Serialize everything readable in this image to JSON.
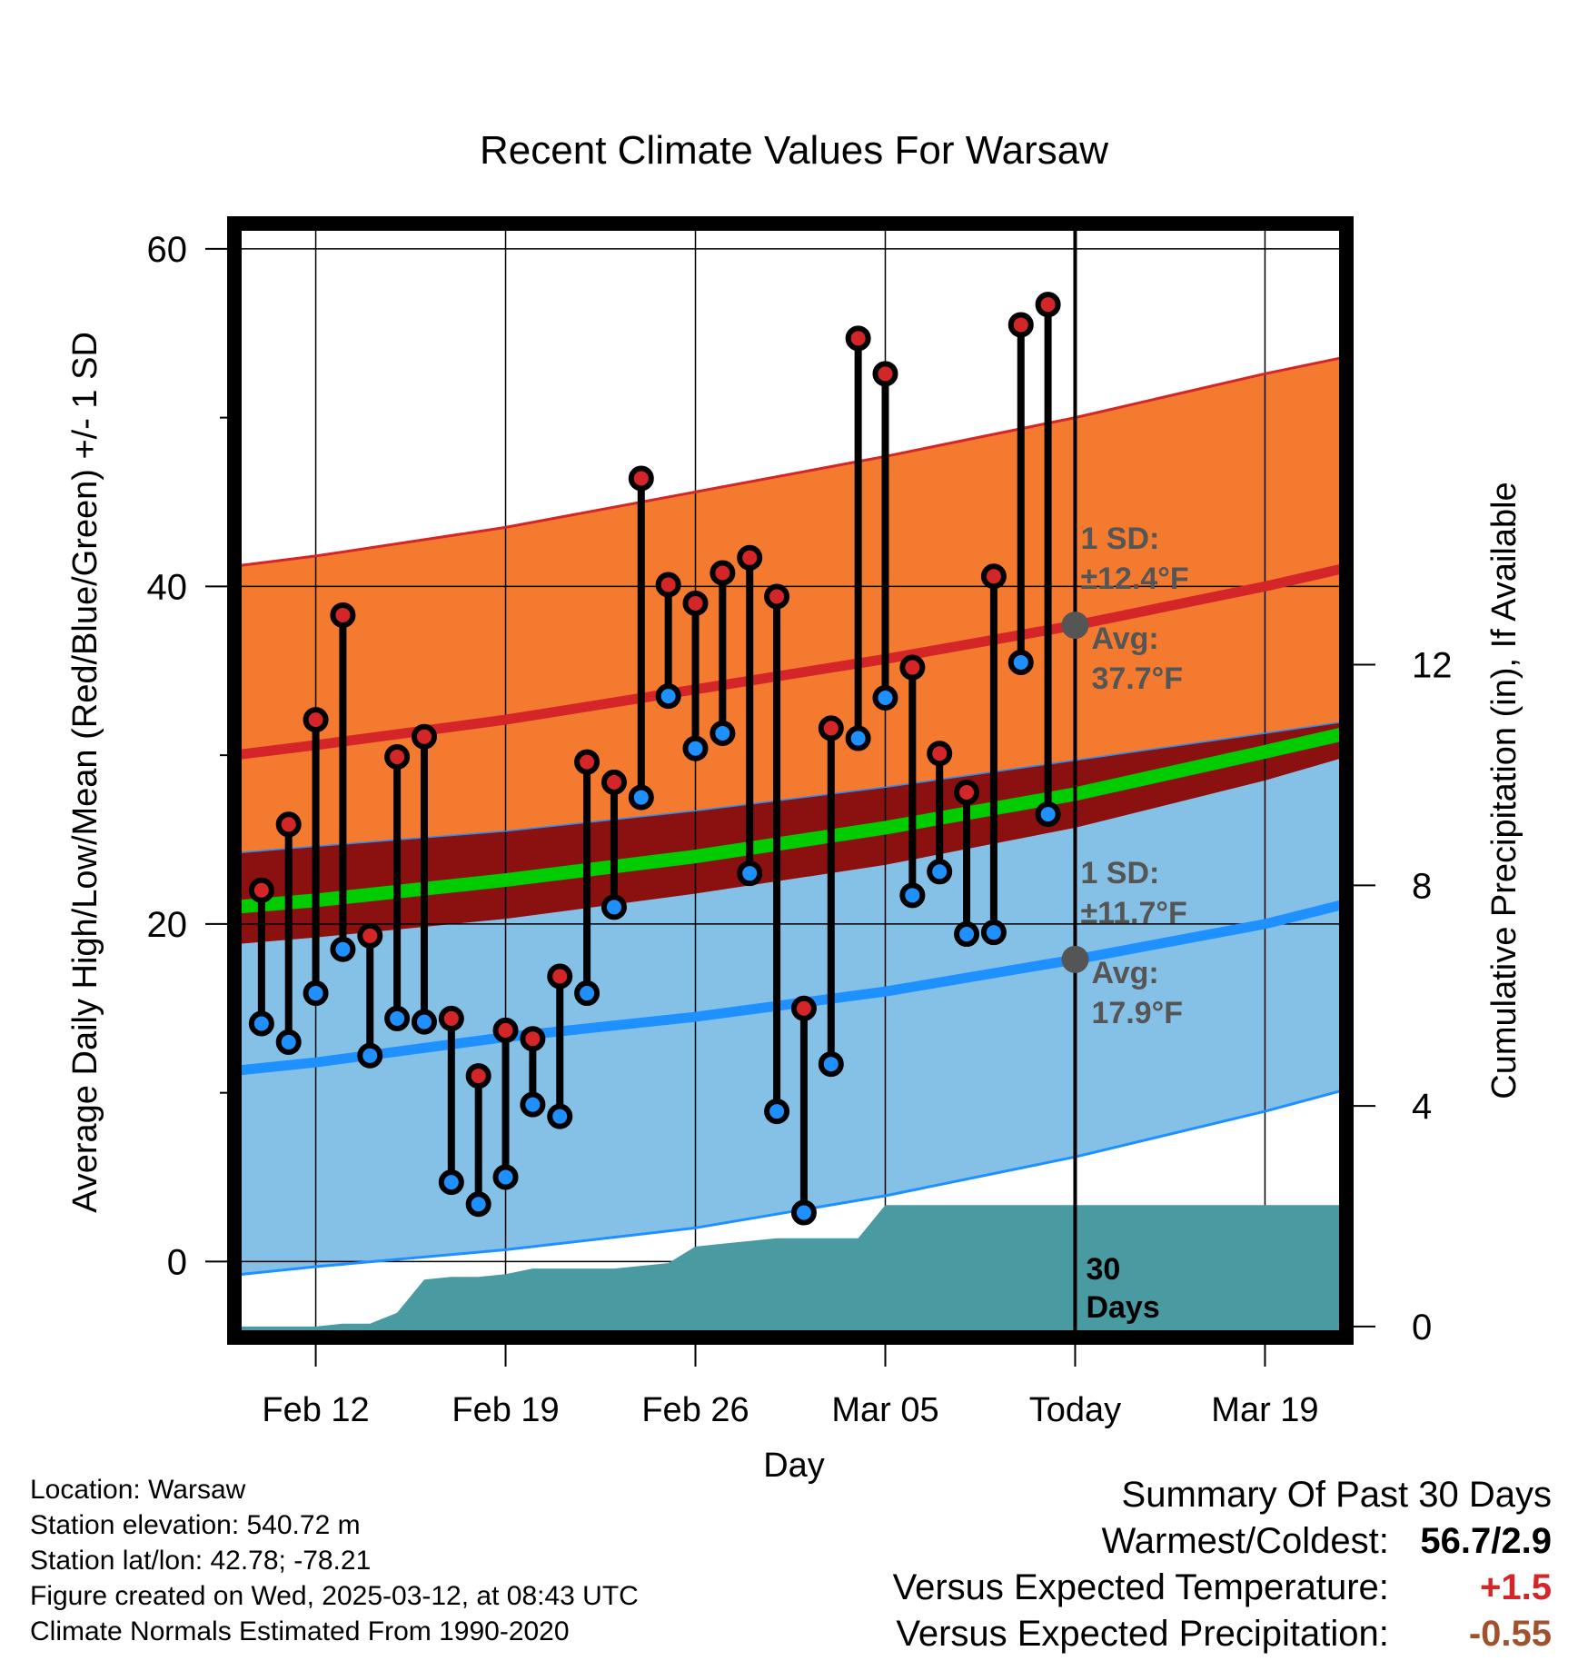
{
  "title": "Recent Climate Values For Warsaw",
  "xlabel": "Day",
  "ylabel_left": "Average Daily High/Low/Mean (Red/Blue/Green) +/- 1 SD",
  "ylabel_right": "Cumulative Precipitation (in), If Available",
  "colors": {
    "high_band": "#f47a30",
    "low_band": "#85c1e6",
    "high_line": "#d42628",
    "low_line": "#1e90ff",
    "mean_line": "#00cc00",
    "mean_band": "#8b1010",
    "precip": "#4a9aa2",
    "high_point": "#d42628",
    "low_point": "#1e90ff",
    "annotation": "#555555",
    "temp_delta": "#d42628",
    "precip_delta": "#a0522d"
  },
  "annotations": {
    "high_sd_label": "1 SD:",
    "high_sd_value": "±12.4°F",
    "high_avg_label": "Avg:",
    "high_avg_value": "37.7°F",
    "low_sd_label": "1 SD:",
    "low_sd_value": "±11.7°F",
    "low_avg_label": "Avg:",
    "low_avg_value": "17.9°F",
    "days_label_1": "30",
    "days_label_2": "Days"
  },
  "chart_data": {
    "type": "line",
    "title": "Recent Climate Values For Warsaw",
    "xlabel": "Day",
    "ylabel": "Average Daily High/Low/Mean (Red/Blue/Green) +/- 1 SD",
    "y2label": "Cumulative Precipitation (in), If Available",
    "x_range": [
      "2025-02-09",
      "2025-03-22"
    ],
    "ylim": [
      -4.5,
      61.5
    ],
    "y2lim": [
      -0.2,
      20
    ],
    "yticks": [
      0,
      20,
      40,
      60
    ],
    "y2ticks": [
      0,
      4,
      8,
      12
    ],
    "xticks": [
      {
        "date": "2025-02-12",
        "label": "Feb 12"
      },
      {
        "date": "2025-02-19",
        "label": "Feb 19"
      },
      {
        "date": "2025-02-26",
        "label": "Feb 26"
      },
      {
        "date": "2025-03-05",
        "label": "Mar 05"
      },
      {
        "date": "2025-03-12",
        "label": "Today"
      },
      {
        "date": "2025-03-19",
        "label": "Mar 19"
      }
    ],
    "today": "2025-03-12",
    "grid": true,
    "normals": {
      "dates": [
        "2025-02-09",
        "2025-02-12",
        "2025-02-19",
        "2025-02-26",
        "2025-03-05",
        "2025-03-12",
        "2025-03-19",
        "2025-03-22"
      ],
      "high_mean": [
        30.0,
        30.6,
        32.1,
        33.9,
        35.7,
        37.7,
        40.0,
        41.1
      ],
      "high_upper": [
        41.2,
        41.8,
        43.5,
        45.6,
        47.7,
        50.0,
        52.6,
        53.6
      ],
      "high_lower": [
        24.2,
        24.6,
        25.5,
        26.7,
        28.1,
        29.7,
        31.3,
        32.0
      ],
      "mean": [
        21.0,
        21.4,
        22.6,
        24.0,
        25.7,
        27.7,
        30.2,
        31.3
      ],
      "mean_upper": [
        24.2,
        24.6,
        25.5,
        26.7,
        28.1,
        29.7,
        31.3,
        32.0
      ],
      "mean_lower": [
        18.8,
        19.2,
        20.3,
        21.8,
        23.5,
        25.7,
        28.5,
        29.9
      ],
      "low_mean": [
        11.3,
        11.8,
        13.3,
        14.5,
        16.0,
        17.9,
        20.0,
        21.2
      ],
      "low_upper": [
        18.8,
        19.2,
        20.3,
        21.8,
        23.5,
        25.7,
        28.5,
        29.9
      ],
      "low_lower": [
        -0.8,
        -0.3,
        0.7,
        2.0,
        3.9,
        6.2,
        8.9,
        10.2
      ]
    },
    "series": [
      {
        "name": "High",
        "dates": [
          "2025-02-10",
          "2025-02-11",
          "2025-02-12",
          "2025-02-13",
          "2025-02-14",
          "2025-02-15",
          "2025-02-16",
          "2025-02-17",
          "2025-02-18",
          "2025-02-19",
          "2025-02-20",
          "2025-02-21",
          "2025-02-22",
          "2025-02-23",
          "2025-02-24",
          "2025-02-25",
          "2025-02-26",
          "2025-02-27",
          "2025-02-28",
          "2025-03-01",
          "2025-03-02",
          "2025-03-03",
          "2025-03-04",
          "2025-03-05",
          "2025-03-06",
          "2025-03-07",
          "2025-03-08",
          "2025-03-09",
          "2025-03-10",
          "2025-03-11"
        ],
        "values": [
          22.0,
          25.9,
          32.1,
          38.3,
          19.3,
          29.9,
          31.1,
          14.4,
          11.0,
          13.7,
          13.2,
          16.9,
          29.6,
          28.4,
          46.4,
          40.1,
          39.0,
          40.8,
          41.7,
          39.4,
          15.0,
          31.6,
          54.7,
          52.6,
          35.2,
          30.1,
          27.8,
          40.6,
          55.5,
          56.7
        ]
      },
      {
        "name": "Low",
        "dates": [
          "2025-02-10",
          "2025-02-11",
          "2025-02-12",
          "2025-02-13",
          "2025-02-14",
          "2025-02-15",
          "2025-02-16",
          "2025-02-17",
          "2025-02-18",
          "2025-02-19",
          "2025-02-20",
          "2025-02-21",
          "2025-02-22",
          "2025-02-23",
          "2025-02-24",
          "2025-02-25",
          "2025-02-26",
          "2025-02-27",
          "2025-02-28",
          "2025-03-01",
          "2025-03-02",
          "2025-03-03",
          "2025-03-04",
          "2025-03-05",
          "2025-03-06",
          "2025-03-07",
          "2025-03-08",
          "2025-03-09",
          "2025-03-10",
          "2025-03-11"
        ],
        "values": [
          14.1,
          13.0,
          15.9,
          18.5,
          12.2,
          14.4,
          14.2,
          4.7,
          3.4,
          5.0,
          9.3,
          8.6,
          15.9,
          21.0,
          27.5,
          33.5,
          30.4,
          31.3,
          23.0,
          8.9,
          2.9,
          11.7,
          31.0,
          33.4,
          21.7,
          23.1,
          19.4,
          19.5,
          35.5,
          26.5
        ]
      }
    ],
    "precipitation": {
      "dates": [
        "2025-02-09",
        "2025-02-10",
        "2025-02-11",
        "2025-02-12",
        "2025-02-13",
        "2025-02-14",
        "2025-02-15",
        "2025-02-16",
        "2025-02-17",
        "2025-02-18",
        "2025-02-19",
        "2025-02-20",
        "2025-02-21",
        "2025-02-22",
        "2025-02-23",
        "2025-02-24",
        "2025-02-25",
        "2025-02-26",
        "2025-02-27",
        "2025-02-28",
        "2025-03-01",
        "2025-03-02",
        "2025-03-03",
        "2025-03-04",
        "2025-03-05",
        "2025-03-06",
        "2025-03-22"
      ],
      "values": [
        0,
        0,
        0,
        0,
        0.05,
        0.05,
        0.25,
        0.85,
        0.9,
        0.9,
        0.95,
        1.05,
        1.05,
        1.05,
        1.05,
        1.1,
        1.15,
        1.45,
        1.5,
        1.55,
        1.6,
        1.6,
        1.6,
        1.6,
        2.2,
        2.2,
        2.2
      ]
    }
  },
  "footer": {
    "location": "Location: Warsaw",
    "elevation": "Station elevation: 540.72 m",
    "latlon": "Station lat/lon: 42.78; -78.21",
    "created": "Figure created on Wed, 2025-03-12, at 08:43 UTC",
    "normals": "Climate Normals Estimated From 1990-2020"
  },
  "summary": {
    "title": "Summary Of Past 30 Days",
    "warmest_coldest_label": "Warmest/Coldest:",
    "warmest_coldest_value": "56.7/2.9",
    "temp_label": "Versus Expected Temperature:",
    "temp_value": "+1.5",
    "precip_label": "Versus Expected Precipitation:",
    "precip_value": "-0.55"
  }
}
